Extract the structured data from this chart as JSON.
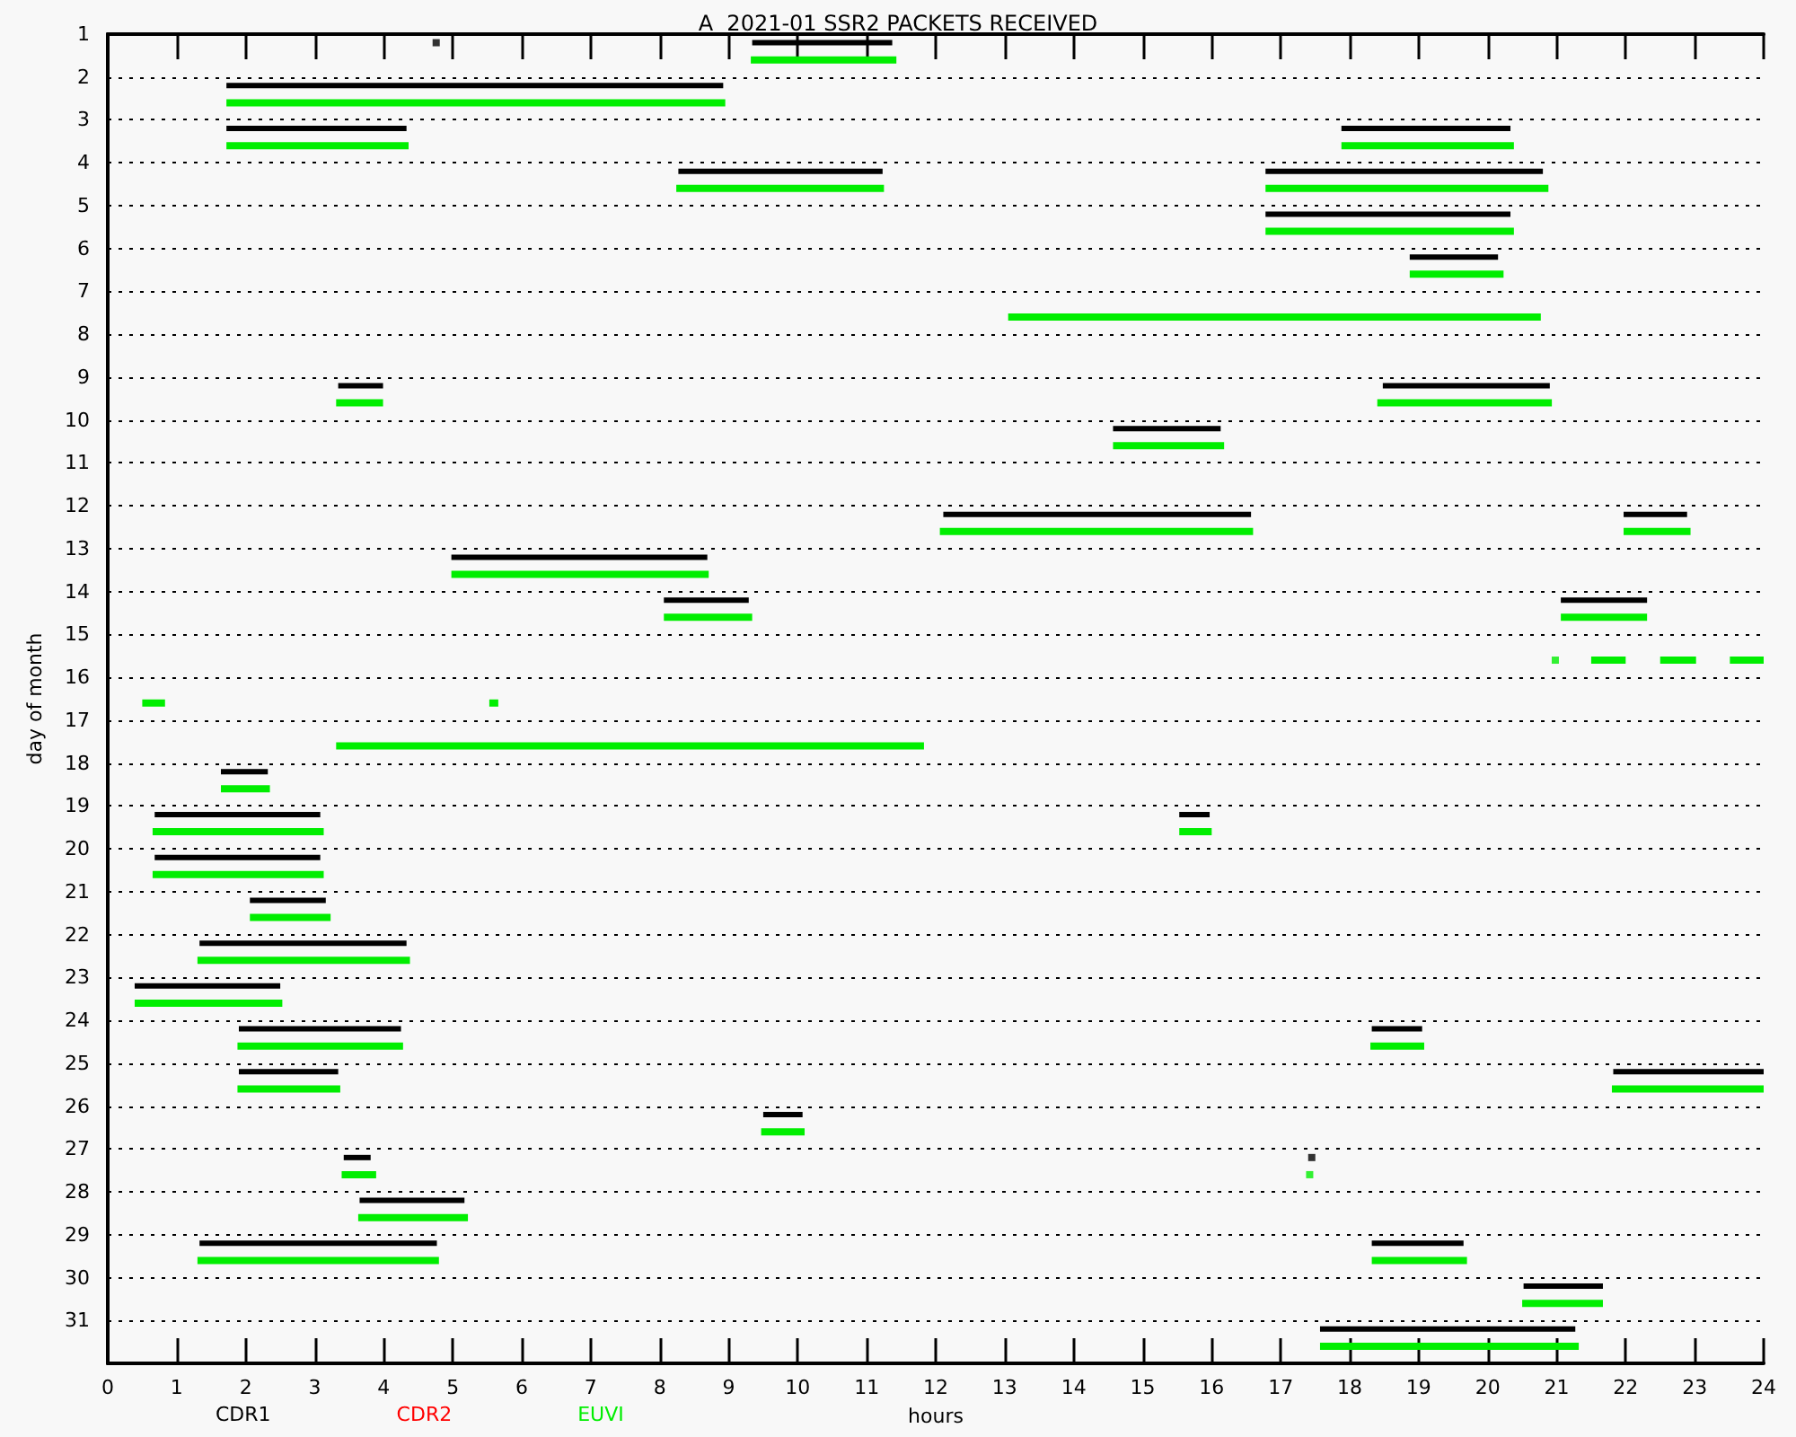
{
  "chart_data": {
    "type": "line",
    "title": "A  2021-01 SSR2 PACKETS RECEIVED",
    "xlabel": "hours",
    "ylabel": "day of month",
    "xlim": [
      0,
      24
    ],
    "xticks": [
      0,
      1,
      2,
      3,
      4,
      5,
      6,
      7,
      8,
      9,
      10,
      11,
      12,
      13,
      14,
      15,
      16,
      17,
      18,
      19,
      20,
      21,
      22,
      23,
      24
    ],
    "ylim": [
      32,
      1
    ],
    "yticks": [
      1,
      2,
      3,
      4,
      5,
      6,
      7,
      8,
      9,
      10,
      11,
      12,
      13,
      14,
      15,
      16,
      17,
      18,
      19,
      20,
      21,
      22,
      23,
      24,
      25,
      26,
      27,
      28,
      29,
      30,
      31
    ],
    "grid": "y",
    "legend": "bottom left",
    "marker": "none",
    "line_style": "solid",
    "series": [
      {
        "name": "CDR1",
        "color": "#000000",
        "x": [
          9.34,
          11.37
        ],
        "values": [
          1.2,
          1.2
        ]
      },
      {
        "name": "CDR2",
        "color": "#ff0000"
      },
      {
        "name": "EUVI",
        "color": "#00ee00",
        "x": [
          9.32,
          11.43
        ],
        "values": [
          1.6,
          1.6
        ]
      },
      {
        "color": "#000000",
        "x": [
          1.72,
          8.92
        ],
        "values": [
          2.2,
          2.2
        ]
      },
      {
        "color": "#000000",
        "x": [
          1.72,
          4.33
        ],
        "values": [
          3.2,
          3.2
        ]
      },
      {
        "color": "#000000",
        "x": [
          17.88,
          20.33
        ],
        "values": [
          3.2,
          3.2
        ]
      },
      {
        "color": "#000000",
        "x": [
          8.27,
          11.23
        ],
        "values": [
          4.2,
          4.2
        ]
      },
      {
        "color": "#000000",
        "x": [
          16.78,
          20.8
        ],
        "values": [
          4.2,
          4.2
        ]
      },
      {
        "color": "#000000",
        "x": [
          16.78,
          20.33
        ],
        "values": [
          5.2,
          5.2
        ]
      },
      {
        "color": "#000000",
        "x": [
          18.87,
          20.15
        ],
        "values": [
          6.2,
          6.2
        ]
      },
      {
        "color": "#000000",
        "x": [
          3.34,
          3.99
        ],
        "values": [
          9.2,
          9.2
        ]
      },
      {
        "color": "#000000",
        "x": [
          18.48,
          20.9
        ],
        "values": [
          9.2,
          9.2
        ]
      },
      {
        "color": "#000000",
        "x": [
          14.57,
          16.13
        ],
        "values": [
          10.2,
          10.2
        ]
      },
      {
        "color": "#000000",
        "x": [
          12.11,
          16.57
        ],
        "values": [
          12.2,
          12.2
        ]
      },
      {
        "color": "#000000",
        "x": [
          21.97,
          22.89
        ],
        "values": [
          12.2,
          12.2
        ]
      },
      {
        "color": "#000000",
        "x": [
          4.98,
          8.69
        ],
        "values": [
          13.2,
          13.2
        ]
      },
      {
        "color": "#000000",
        "x": [
          8.06,
          9.29
        ],
        "values": [
          14.2,
          14.2
        ]
      },
      {
        "color": "#000000",
        "x": [
          21.06,
          22.31
        ],
        "values": [
          14.2,
          14.2
        ]
      },
      {
        "color": "#000000",
        "x": [
          1.64,
          2.32
        ],
        "values": [
          18.2,
          18.2
        ]
      },
      {
        "color": "#000000",
        "x": [
          0.68,
          3.08
        ],
        "values": [
          19.2,
          19.2
        ]
      },
      {
        "color": "#000000",
        "x": [
          15.53,
          15.97
        ],
        "values": [
          19.2,
          19.2
        ]
      },
      {
        "color": "#000000",
        "x": [
          0.68,
          3.08
        ],
        "values": [
          20.2,
          20.2
        ]
      },
      {
        "color": "#000000",
        "x": [
          2.06,
          3.16
        ],
        "values": [
          21.2,
          21.2
        ]
      },
      {
        "color": "#000000",
        "x": [
          1.33,
          4.33
        ],
        "values": [
          22.2,
          22.2
        ]
      },
      {
        "color": "#000000",
        "x": [
          0.39,
          2.5
        ],
        "values": [
          23.2,
          23.2
        ]
      },
      {
        "color": "#000000",
        "x": [
          1.9,
          4.25
        ],
        "values": [
          24.2,
          24.2
        ]
      },
      {
        "color": "#000000",
        "x": [
          18.32,
          19.05
        ],
        "values": [
          24.2,
          24.2
        ]
      },
      {
        "color": "#000000",
        "x": [
          1.9,
          3.34
        ],
        "values": [
          25.2,
          25.2
        ]
      },
      {
        "color": "#000000",
        "x": [
          21.82,
          24
        ],
        "values": [
          25.2,
          25.2
        ]
      },
      {
        "color": "#000000",
        "x": [
          9.5,
          10.07
        ],
        "values": [
          26.2,
          26.2
        ]
      },
      {
        "color": "#000000",
        "x": [
          3.42,
          3.81
        ],
        "values": [
          27.2,
          27.2
        ]
      },
      {
        "color": "#000000",
        "x": [
          3.65,
          5.17
        ],
        "values": [
          28.2,
          28.2
        ]
      },
      {
        "color": "#000000",
        "x": [
          1.33,
          4.77
        ],
        "values": [
          29.2,
          29.2
        ]
      },
      {
        "color": "#000000",
        "x": [
          18.32,
          19.65
        ],
        "values": [
          29.2,
          29.2
        ]
      },
      {
        "color": "#000000",
        "x": [
          20.52,
          21.67
        ],
        "values": [
          30.2,
          30.2
        ]
      },
      {
        "color": "#000000",
        "x": [
          17.57,
          21.27
        ],
        "values": [
          31.2,
          31.2
        ]
      },
      {
        "color": "#00ee00",
        "x": [
          1.72,
          8.95
        ],
        "values": [
          2.6,
          2.6
        ]
      },
      {
        "color": "#00ee00",
        "x": [
          1.72,
          4.36
        ],
        "values": [
          3.6,
          3.6
        ]
      },
      {
        "color": "#00ee00",
        "x": [
          17.88,
          20.38
        ],
        "values": [
          3.6,
          3.6
        ]
      },
      {
        "color": "#00ee00",
        "x": [
          8.24,
          11.25
        ],
        "values": [
          4.6,
          4.6
        ]
      },
      {
        "color": "#00ee00",
        "x": [
          16.78,
          20.88
        ],
        "values": [
          4.6,
          4.6
        ]
      },
      {
        "color": "#00ee00",
        "x": [
          16.78,
          20.38
        ],
        "values": [
          5.6,
          5.6
        ]
      },
      {
        "color": "#00ee00",
        "x": [
          18.87,
          20.23
        ],
        "values": [
          6.6,
          6.6
        ]
      },
      {
        "color": "#00ee00",
        "x": [
          13.05,
          20.77
        ],
        "values": [
          7.6,
          7.6
        ]
      },
      {
        "color": "#00ee00",
        "x": [
          3.31,
          3.99
        ],
        "values": [
          9.6,
          9.6
        ]
      },
      {
        "color": "#00ee00",
        "x": [
          18.4,
          20.93
        ],
        "values": [
          9.6,
          9.6
        ]
      },
      {
        "color": "#00ee00",
        "x": [
          14.57,
          16.18
        ],
        "values": [
          10.6,
          10.6
        ]
      },
      {
        "color": "#00ee00",
        "x": [
          12.06,
          16.6
        ],
        "values": [
          12.6,
          12.6
        ]
      },
      {
        "color": "#00ee00",
        "x": [
          21.97,
          22.94
        ],
        "values": [
          12.6,
          12.6
        ]
      },
      {
        "color": "#00ee00",
        "x": [
          4.98,
          8.71
        ],
        "values": [
          13.6,
          13.6
        ]
      },
      {
        "color": "#00ee00",
        "x": [
          8.06,
          9.34
        ],
        "values": [
          14.6,
          14.6
        ]
      },
      {
        "color": "#00ee00",
        "x": [
          21.06,
          22.31
        ],
        "values": [
          14.6,
          14.6
        ]
      },
      {
        "color": "#00ee00",
        "x": [
          21.5,
          22.0
        ],
        "values": [
          15.6,
          15.6
        ]
      },
      {
        "color": "#00ee00",
        "x": [
          22.5,
          23.02
        ],
        "values": [
          15.6,
          15.6
        ]
      },
      {
        "color": "#00ee00",
        "x": [
          23.51,
          24
        ],
        "values": [
          15.6,
          15.6
        ]
      },
      {
        "color": "#00ee00",
        "x": [
          0.5,
          0.83
        ],
        "values": [
          16.6,
          16.6
        ]
      },
      {
        "color": "#00ee00",
        "x": [
          5.53,
          5.66
        ],
        "values": [
          16.6,
          16.6
        ]
      },
      {
        "color": "#00ee00",
        "x": [
          3.31,
          11.83
        ],
        "values": [
          17.6,
          17.6
        ]
      },
      {
        "color": "#00ee00",
        "x": [
          1.64,
          2.35
        ],
        "values": [
          18.6,
          18.6
        ]
      },
      {
        "color": "#00ee00",
        "x": [
          0.65,
          3.13
        ],
        "values": [
          19.6,
          19.6
        ]
      },
      {
        "color": "#00ee00",
        "x": [
          15.53,
          16.0
        ],
        "values": [
          19.6,
          19.6
        ]
      },
      {
        "color": "#00ee00",
        "x": [
          0.65,
          3.13
        ],
        "values": [
          20.6,
          20.6
        ]
      },
      {
        "color": "#00ee00",
        "x": [
          2.06,
          3.23
        ],
        "values": [
          21.6,
          21.6
        ]
      },
      {
        "color": "#00ee00",
        "x": [
          1.3,
          4.38
        ],
        "values": [
          22.6,
          22.6
        ]
      },
      {
        "color": "#00ee00",
        "x": [
          0.39,
          2.53
        ],
        "values": [
          23.6,
          23.6
        ]
      },
      {
        "color": "#00ee00",
        "x": [
          1.88,
          4.28
        ],
        "values": [
          24.6,
          24.6
        ]
      },
      {
        "color": "#00ee00",
        "x": [
          18.3,
          19.08
        ],
        "values": [
          24.6,
          24.6
        ]
      },
      {
        "color": "#00ee00",
        "x": [
          1.88,
          3.37
        ],
        "values": [
          25.6,
          25.6
        ]
      },
      {
        "color": "#00ee00",
        "x": [
          21.8,
          24
        ],
        "values": [
          25.6,
          25.6
        ]
      },
      {
        "color": "#00ee00",
        "x": [
          9.47,
          10.1
        ],
        "values": [
          26.6,
          26.6
        ]
      },
      {
        "color": "#00ee00",
        "x": [
          3.39,
          3.89
        ],
        "values": [
          27.6,
          27.6
        ]
      },
      {
        "color": "#00ee00",
        "x": [
          3.63,
          5.22
        ],
        "values": [
          28.6,
          28.6
        ]
      },
      {
        "color": "#00ee00",
        "x": [
          1.3,
          4.8
        ],
        "values": [
          29.6,
          29.6
        ]
      },
      {
        "color": "#00ee00",
        "x": [
          18.32,
          19.7
        ],
        "values": [
          29.6,
          29.6
        ]
      },
      {
        "color": "#00ee00",
        "x": [
          20.5,
          21.67
        ],
        "values": [
          30.6,
          30.6
        ]
      },
      {
        "color": "#00ee00",
        "x": [
          17.57,
          21.32
        ],
        "values": [
          31.6,
          31.6
        ]
      },
      {
        "type": "scatter",
        "marker": "square",
        "color": "#000000",
        "x": [
          4.76,
          17.45
        ],
        "values": [
          1.2,
          27.2
        ]
      },
      {
        "type": "scatter",
        "marker": "square",
        "color": "#00ee00",
        "x": [
          20.98,
          17.42
        ],
        "values": [
          15.6,
          27.6
        ]
      }
    ]
  }
}
